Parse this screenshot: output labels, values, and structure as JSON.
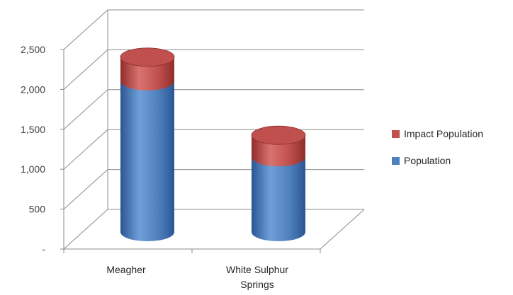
{
  "chart_data": {
    "type": "bar",
    "style": "3d-cylinder-stacked",
    "title": "",
    "xlabel": "",
    "ylabel": "",
    "categories": [
      "Meagher",
      "White Sulphur Springs"
    ],
    "category_label_lines": [
      [
        "Meagher"
      ],
      [
        "White Sulphur",
        "Springs"
      ]
    ],
    "series": [
      {
        "name": "Population",
        "values": [
          1891,
          939
        ],
        "color": "#4f81bd",
        "color_dark": "#2b5694",
        "color_light": "#6f9fd8"
      },
      {
        "name": "Impact Population",
        "values": [
          301,
          274
        ],
        "color": "#c0504d",
        "color_dark": "#8f2d2b",
        "color_light": "#d9736f"
      }
    ],
    "ylim": [
      0,
      2500
    ],
    "yticks": [
      0,
      500,
      1000,
      1500,
      2000,
      2500
    ],
    "ytick_labels": [
      "-",
      "500",
      "1,000",
      "1,500",
      "2,000",
      "2,500"
    ],
    "grid": true,
    "legend": {
      "position": "right",
      "entries": [
        "Impact Population",
        "Population"
      ]
    }
  }
}
